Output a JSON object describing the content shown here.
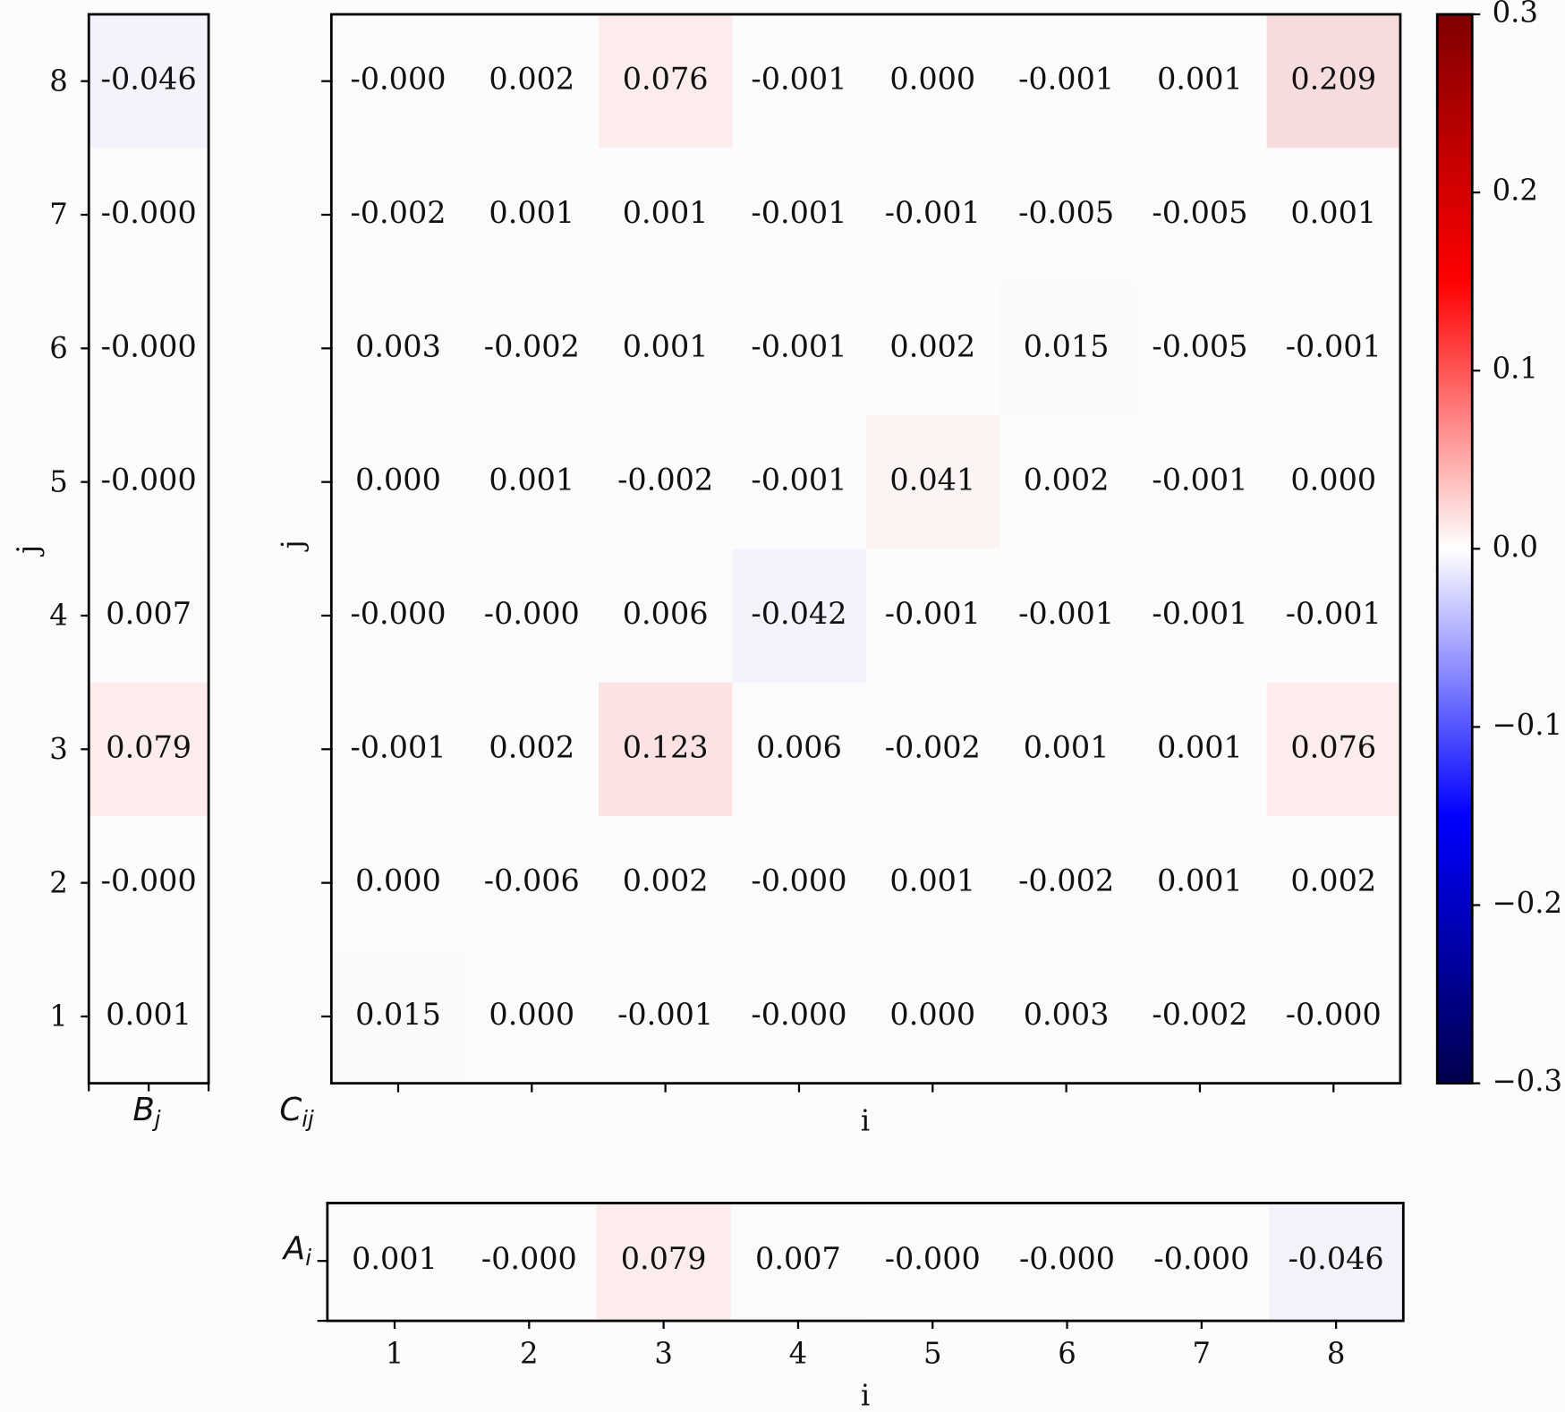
{
  "chart_data": [
    {
      "type": "heatmap",
      "ylabel": "j",
      "xlabel": {
        "text": "B",
        "subscript": "j"
      },
      "yticks": [
        1,
        2,
        3,
        4,
        5,
        6,
        7,
        8
      ],
      "values": [
        0.001,
        0,
        0.079,
        0.007,
        0,
        0,
        0,
        -0.046
      ],
      "value_labels": [
        "0.001",
        "-0.000",
        "0.079",
        "0.007",
        "-0.000",
        "-0.000",
        "-0.000",
        "-0.046"
      ]
    },
    {
      "type": "heatmap",
      "ylabel": "j",
      "xlabel": "i",
      "panel_label": {
        "text": "C",
        "subscript": "ij"
      },
      "values": [
        [
          0.015,
          0,
          -0.001,
          0,
          0,
          0.003,
          -0.002,
          0
        ],
        [
          0,
          -0.006,
          0.002,
          0,
          0.001,
          -0.002,
          0.001,
          0.002
        ],
        [
          -0.001,
          0.002,
          0.123,
          0.006,
          -0.002,
          0.001,
          0.001,
          0.076
        ],
        [
          0,
          0,
          0.006,
          -0.042,
          -0.001,
          -0.001,
          -0.001,
          -0.001
        ],
        [
          0,
          0.001,
          -0.002,
          -0.001,
          0.041,
          0.002,
          -0.001,
          0
        ],
        [
          0.003,
          -0.002,
          0.001,
          -0.001,
          0.002,
          0.015,
          -0.005,
          -0.001
        ],
        [
          -0.002,
          0.001,
          0.001,
          -0.001,
          -0.001,
          -0.005,
          -0.005,
          0.001
        ],
        [
          0,
          0.002,
          0.076,
          -0.001,
          0,
          -0.001,
          0.001,
          0.209
        ]
      ],
      "value_labels": [
        [
          "0.015",
          "0.000",
          "-0.001",
          "-0.000",
          "0.000",
          "0.003",
          "-0.002",
          "-0.000"
        ],
        [
          "0.000",
          "-0.006",
          "0.002",
          "-0.000",
          "0.001",
          "-0.002",
          "0.001",
          "0.002"
        ],
        [
          "-0.001",
          "0.002",
          "0.123",
          "0.006",
          "-0.002",
          "0.001",
          "0.001",
          "0.076"
        ],
        [
          "-0.000",
          "-0.000",
          "0.006",
          "-0.042",
          "-0.001",
          "-0.001",
          "-0.001",
          "-0.001"
        ],
        [
          "0.000",
          "0.001",
          "-0.002",
          "-0.001",
          "0.041",
          "0.002",
          "-0.001",
          "0.000"
        ],
        [
          "0.003",
          "-0.002",
          "0.001",
          "-0.001",
          "0.002",
          "0.015",
          "-0.005",
          "-0.001"
        ],
        [
          "-0.002",
          "0.001",
          "0.001",
          "-0.001",
          "-0.001",
          "-0.005",
          "-0.005",
          "0.001"
        ],
        [
          "-0.000",
          "0.002",
          "0.076",
          "-0.001",
          "0.000",
          "-0.001",
          "0.001",
          "0.209"
        ]
      ]
    },
    {
      "type": "heatmap",
      "ylabel": {
        "text": "A",
        "subscript": "i"
      },
      "xlabel": "i",
      "xticks": [
        1,
        2,
        3,
        4,
        5,
        6,
        7,
        8
      ],
      "values": [
        0.001,
        0,
        0.079,
        0.007,
        0,
        0,
        0,
        -0.046
      ],
      "value_labels": [
        "0.001",
        "-0.000",
        "0.079",
        "0.007",
        "-0.000",
        "-0.000",
        "-0.000",
        "-0.046"
      ]
    },
    {
      "type": "colorbar",
      "colormap": "seismic",
      "ylim": [
        -0.3,
        0.3
      ],
      "yticks": [
        {
          "value": -0.3,
          "label": "−0.3"
        },
        {
          "value": -0.2,
          "label": "−0.2"
        },
        {
          "value": -0.1,
          "label": "−0.1"
        },
        {
          "value": 0,
          "label": "0.0"
        },
        0.1,
        0.2,
        0.3
      ]
    }
  ]
}
